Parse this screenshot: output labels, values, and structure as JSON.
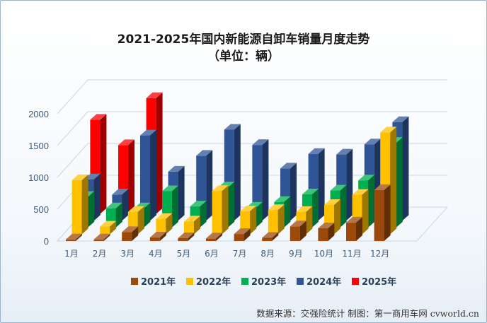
{
  "title": "2021-2025年国内新能源自卸车销量月度走势",
  "subtitle": "（单位：辆）",
  "source": "数据来源：交强险统计  制图：第一商用车网 cvworld.cn",
  "chart_data": {
    "type": "bar",
    "categories": [
      "1月",
      "2月",
      "3月",
      "4月",
      "5月",
      "6月",
      "7月",
      "8月",
      "9月",
      "10月",
      "11月",
      "12月"
    ],
    "series": [
      {
        "name": "2021年",
        "color": "#9c4a0c",
        "values": [
          25,
          25,
          140,
          55,
          45,
          40,
          110,
          50,
          230,
          200,
          290,
          800
        ]
      },
      {
        "name": "2022年",
        "color": "#ffc000",
        "values": [
          850,
          120,
          350,
          240,
          200,
          680,
          360,
          380,
          350,
          460,
          620,
          1600
        ]
      },
      {
        "name": "2023年",
        "color": "#00b050",
        "values": [
          480,
          300,
          300,
          570,
          330,
          630,
          310,
          400,
          520,
          580,
          740,
          1330
        ]
      },
      {
        "name": "2024年",
        "color": "#2f5597",
        "values": [
          650,
          410,
          1340,
          770,
          1020,
          1430,
          1190,
          820,
          1050,
          1040,
          1200,
          1550
        ]
      },
      {
        "name": "2025年",
        "color": "#ff0000",
        "values": [
          1480,
          1080,
          1820,
          null,
          null,
          null,
          null,
          null,
          null,
          null,
          null,
          null
        ]
      }
    ],
    "y_ticks": [
      0,
      500,
      1000,
      1500,
      2000
    ],
    "ylim": [
      0,
      2000
    ],
    "grid": true,
    "legend_position": "bottom"
  }
}
